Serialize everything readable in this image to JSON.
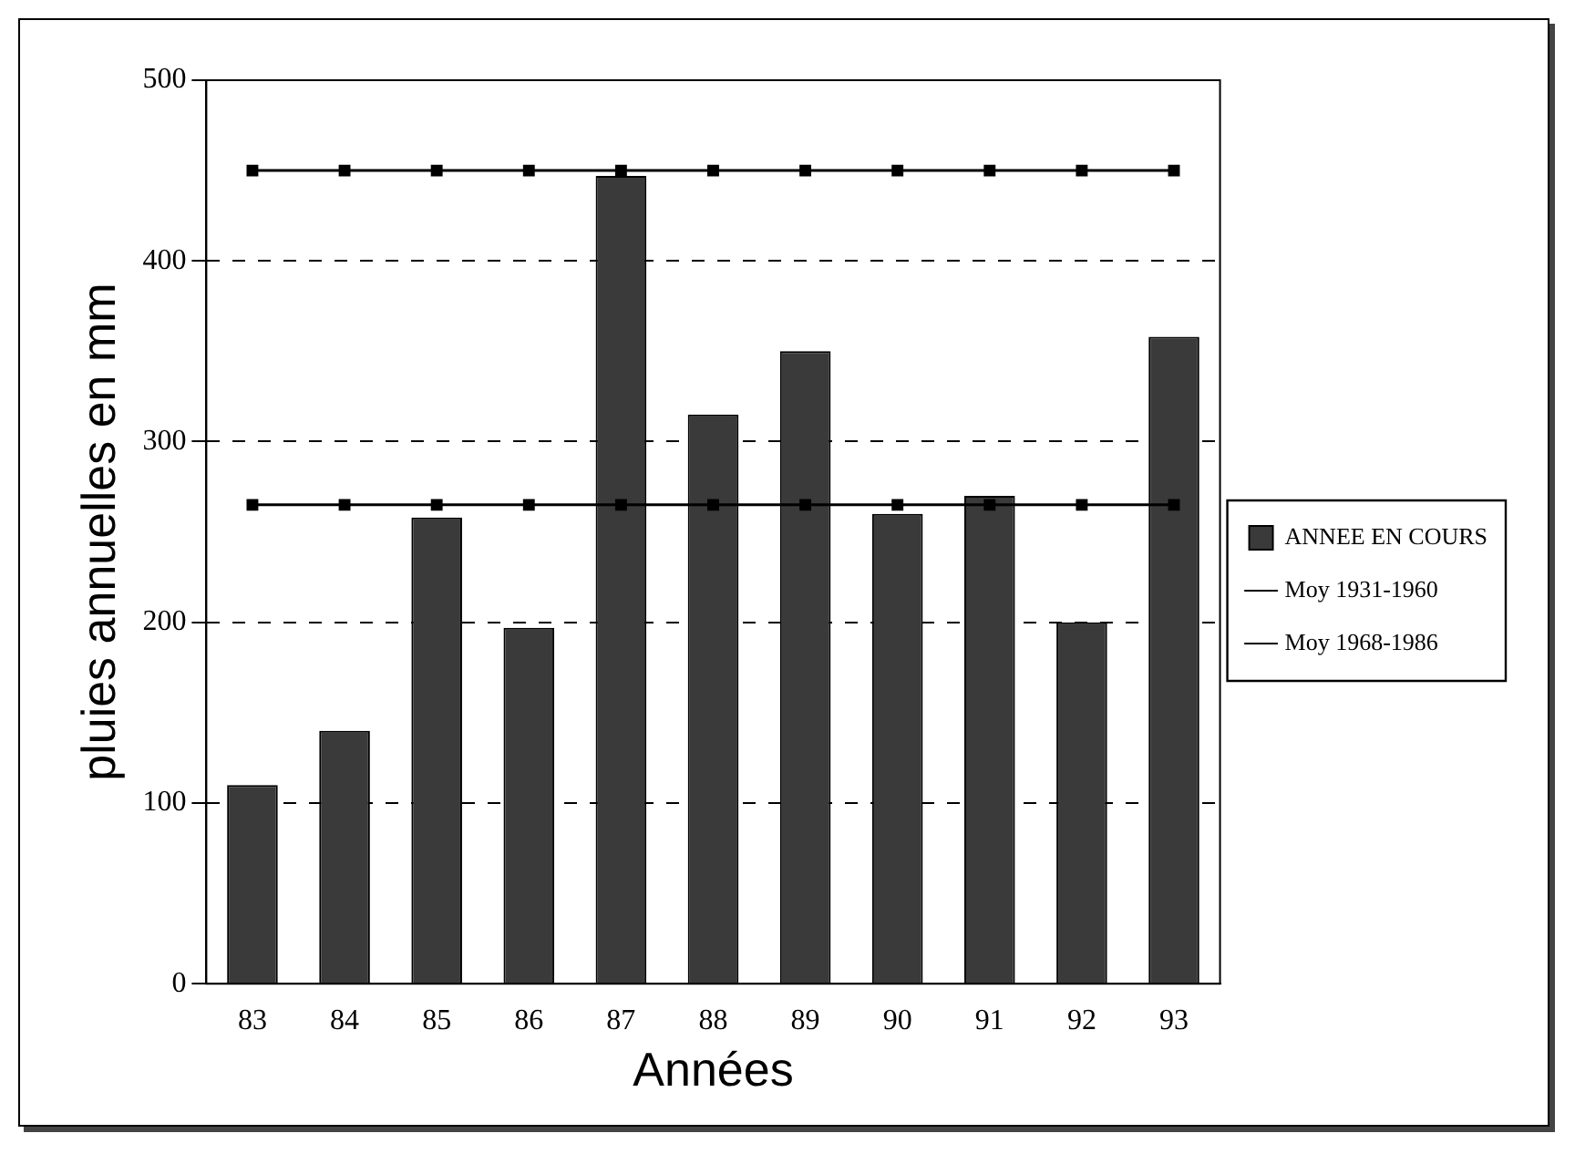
{
  "chart_data": {
    "type": "bar",
    "xlabel": "Années",
    "ylabel": "pluies annuelles en mm",
    "categories": [
      "83",
      "84",
      "85",
      "86",
      "87",
      "88",
      "89",
      "90",
      "91",
      "92",
      "93"
    ],
    "series": [
      {
        "name": "ANNEE EN COURS",
        "color": "#3a3a3a",
        "values": [
          110,
          140,
          258,
          197,
          447,
          315,
          350,
          260,
          270,
          200,
          358
        ]
      },
      {
        "name": "Moy 1931-1960",
        "type": "line",
        "color": "#000000",
        "values": [
          450,
          450,
          450,
          450,
          450,
          450,
          450,
          450,
          450,
          450,
          450
        ]
      },
      {
        "name": "Moy 1968-1986",
        "type": "line",
        "color": "#000000",
        "values": [
          265,
          265,
          265,
          265,
          265,
          265,
          265,
          265,
          265,
          265,
          265
        ]
      }
    ],
    "ylim": [
      0,
      500
    ],
    "yticks": [
      0,
      100,
      200,
      300,
      400,
      500
    ],
    "grid": "y",
    "legend": "right",
    "marker": "square",
    "line_style": "solid"
  }
}
